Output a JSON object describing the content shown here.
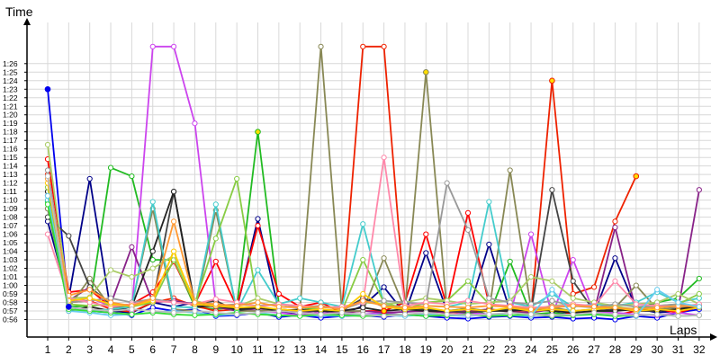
{
  "chart_data": {
    "type": "line",
    "title": "",
    "ylabel": "Time",
    "xlabel": "Laps",
    "x": [
      1,
      2,
      3,
      4,
      5,
      6,
      7,
      8,
      9,
      10,
      11,
      12,
      13,
      14,
      15,
      16,
      17,
      18,
      19,
      20,
      21,
      22,
      23,
      24,
      25,
      26,
      27,
      28,
      29,
      30,
      31,
      32
    ],
    "ylim": [
      55.5,
      88
    ],
    "yticks": [
      56,
      57,
      58,
      59,
      60,
      61,
      62,
      63,
      64,
      65,
      66,
      67,
      68,
      69,
      70,
      71,
      72,
      73,
      74,
      75,
      76,
      77,
      78,
      79,
      80,
      81,
      82,
      83,
      84,
      85,
      86
    ],
    "ytick_labels": [
      "0:56",
      "0:57",
      "0:58",
      "0:59",
      "1:00",
      "1:01",
      "1:02",
      "1:03",
      "1:04",
      "1:05",
      "1:06",
      "1:07",
      "1:08",
      "1:09",
      "1:10",
      "1:11",
      "1:12",
      "1:13",
      "1:14",
      "1:15",
      "1:16",
      "1:17",
      "1:18",
      "1:19",
      "1:20",
      "1:21",
      "1:22",
      "1:23",
      "1:24",
      "1:25",
      "1:26"
    ],
    "grid": true,
    "legend": "none",
    "series": [
      {
        "color": "#0000ee",
        "values": [
          83.0,
          57.5,
          57.0,
          56.8,
          56.5,
          57.4,
          57.0,
          57.2,
          56.4,
          56.5,
          56.8,
          56.3,
          56.5,
          56.2,
          56.4,
          56.5,
          56.3,
          56.6,
          56.4,
          56.2,
          56.1,
          56.3,
          56.4,
          56.2,
          56.3,
          56.1,
          56.2,
          56.0,
          56.4,
          56.2,
          56.8,
          57.2
        ]
      },
      {
        "color": "#000088",
        "values": [
          67.5,
          58.5,
          72.5,
          57.0,
          56.8,
          58.0,
          57.5,
          58.0,
          57.6,
          57.2,
          67.8,
          57.0,
          56.5,
          56.8,
          56.6,
          57.6,
          59.8,
          56.7,
          63.8,
          57.0,
          56.8,
          64.8,
          57.0,
          56.5,
          56.8,
          56.6,
          56.7,
          63.2,
          57.3,
          56.8,
          57.0,
          57.5
        ]
      },
      {
        "color": "#22bb22",
        "values": [
          69.8,
          57.5,
          57.6,
          73.8,
          72.8,
          63.0,
          63.0,
          57.5,
          57.2,
          57.5,
          78.0,
          57.8,
          57.5,
          57.0,
          56.8,
          56.5,
          56.6,
          56.5,
          56.8,
          57.0,
          57.3,
          56.5,
          62.8,
          56.6,
          56.8,
          56.5,
          56.8,
          57.0,
          57.3,
          58.0,
          58.5,
          60.8
        ]
      },
      {
        "color": "#ff0000",
        "values": [
          74.8,
          59.2,
          59.5,
          57.5,
          57.8,
          59.2,
          62.8,
          57.8,
          62.8,
          57.5,
          67.0,
          59.0,
          57.5,
          58.0,
          56.8,
          57.0,
          57.0,
          58.0,
          66.0,
          57.5,
          68.5,
          57.8,
          57.5,
          57.2,
          57.5,
          56.5,
          56.8,
          56.5,
          57.0,
          57.2,
          56.8,
          57.5
        ]
      },
      {
        "color": "#ee2200",
        "values": [
          73.0,
          58.0,
          58.2,
          57.2,
          56.9,
          58.0,
          58.5,
          57.6,
          57.0,
          57.2,
          57.4,
          57.2,
          56.9,
          57.0,
          57.0,
          88.0,
          88.0,
          57.6,
          57.0,
          56.8,
          56.9,
          57.2,
          57.0,
          56.8,
          84.0,
          59.0,
          59.8,
          67.5,
          72.8,
          null,
          null,
          null
        ]
      },
      {
        "color": "#cc44ee",
        "values": [
          69.0,
          58.0,
          58.5,
          57.6,
          57.0,
          88.0,
          88.0,
          79.0,
          57.8,
          57.2,
          57.0,
          56.8,
          56.5,
          56.8,
          56.5,
          56.6,
          56.8,
          56.5,
          56.6,
          56.5,
          56.8,
          56.6,
          56.5,
          66.0,
          56.5,
          63.0,
          56.8,
          56.8,
          56.6,
          56.5,
          56.8,
          56.5
        ]
      },
      {
        "color": "#882288",
        "values": [
          70.5,
          58.2,
          59.8,
          57.8,
          64.5,
          58.0,
          58.2,
          57.8,
          57.5,
          57.0,
          57.3,
          57.0,
          56.8,
          57.0,
          56.8,
          57.0,
          56.8,
          56.9,
          57.0,
          56.8,
          57.0,
          57.2,
          56.9,
          56.8,
          57.2,
          56.8,
          56.9,
          66.8,
          57.0,
          57.0,
          57.2,
          71.2
        ]
      },
      {
        "color": "#888855",
        "values": [
          69.0,
          57.4,
          60.8,
          57.4,
          57.6,
          69.0,
          57.2,
          57.0,
          68.8,
          57.0,
          57.0,
          57.2,
          57.0,
          88.0,
          57.0,
          57.0,
          63.2,
          57.2,
          85.0,
          57.0,
          57.3,
          57.0,
          73.5,
          57.2,
          57.4,
          57.0,
          57.2,
          57.4,
          60.0,
          57.2,
          57.4,
          57.6
        ]
      },
      {
        "color": "#444444",
        "values": [
          68.0,
          65.8,
          59.8,
          57.8,
          57.6,
          58.0,
          71.0,
          57.8,
          58.2,
          57.0,
          57.4,
          57.2,
          57.0,
          57.0,
          57.0,
          58.5,
          57.5,
          57.2,
          57.2,
          57.0,
          56.8,
          57.0,
          57.2,
          57.0,
          71.2,
          60.5,
          57.0,
          57.2,
          57.0,
          57.0,
          57.2,
          57.4
        ]
      },
      {
        "color": "#222222",
        "values": [
          71.0,
          57.0,
          57.5,
          57.0,
          57.5,
          64.0,
          71.0,
          57.5,
          57.6,
          57.2,
          57.4,
          57.0,
          57.2,
          57.0,
          57.0,
          57.4,
          57.0,
          57.2,
          57.0,
          57.0,
          57.2,
          57.0,
          57.0,
          57.2,
          57.0,
          56.8,
          57.0,
          57.0,
          57.2,
          57.0,
          57.2,
          57.6
        ]
      },
      {
        "color": "#44cccc",
        "values": [
          70.0,
          57.5,
          57.0,
          57.2,
          57.5,
          69.8,
          57.5,
          57.4,
          69.5,
          57.0,
          61.8,
          57.8,
          58.5,
          58.0,
          57.5,
          67.2,
          57.8,
          57.4,
          57.6,
          57.5,
          58.0,
          69.8,
          58.0,
          57.5,
          59.0,
          57.5,
          57.8,
          57.6,
          58.0,
          59.2,
          58.0,
          58.5
        ]
      },
      {
        "color": "#88cc44",
        "values": [
          71.5,
          57.8,
          57.6,
          57.8,
          57.5,
          58.0,
          63.0,
          57.8,
          65.5,
          72.5,
          57.6,
          57.8,
          57.5,
          57.2,
          57.0,
          63.0,
          58.0,
          57.2,
          58.0,
          58.2,
          60.5,
          57.8,
          57.5,
          57.2,
          57.6,
          57.8,
          57.4,
          57.5,
          57.2,
          57.6,
          57.8,
          59.0
        ]
      },
      {
        "color": "#aacc66",
        "values": [
          76.5,
          58.5,
          58.6,
          61.8,
          61.0,
          62.0,
          63.5,
          58.2,
          57.6,
          57.5,
          58.5,
          57.8,
          57.6,
          57.4,
          57.5,
          58.0,
          57.8,
          58.0,
          58.5,
          58.2,
          57.8,
          58.0,
          58.2,
          61.0,
          60.5,
          58.5,
          58.0,
          57.6,
          57.8,
          58.0,
          59.0,
          57.8
        ]
      },
      {
        "color": "#999999",
        "values": [
          73.5,
          58.0,
          58.2,
          58.5,
          58.0,
          58.4,
          58.0,
          57.8,
          57.6,
          57.8,
          57.6,
          57.8,
          57.5,
          57.6,
          57.2,
          58.0,
          58.2,
          58.0,
          57.8,
          72.0,
          66.5,
          58.5,
          58.0,
          57.8,
          58.2,
          57.6,
          57.4,
          57.8,
          57.5,
          57.6,
          57.8,
          57.6
        ]
      },
      {
        "color": "#ff88aa",
        "values": [
          66.0,
          58.5,
          58.0,
          57.5,
          57.8,
          58.2,
          58.0,
          57.8,
          58.4,
          58.0,
          57.5,
          57.8,
          57.6,
          57.4,
          57.5,
          58.0,
          75.0,
          57.6,
          58.0,
          57.8,
          58.2,
          57.8,
          57.6,
          57.4,
          57.5,
          57.8,
          57.6,
          60.5,
          57.8,
          57.6,
          57.5,
          57.8
        ]
      },
      {
        "color": "#ffcc00",
        "values": [
          72.0,
          58.2,
          58.5,
          57.8,
          57.6,
          58.2,
          64.0,
          57.8,
          57.6,
          57.4,
          57.5,
          57.2,
          57.0,
          57.2,
          57.0,
          59.0,
          57.5,
          57.2,
          57.4,
          57.0,
          57.2,
          57.0,
          57.4,
          57.0,
          57.2,
          57.0,
          57.2,
          57.4,
          57.0,
          57.2,
          57.0,
          57.4
        ]
      },
      {
        "color": "#ff9933",
        "values": [
          72.5,
          58.8,
          59.5,
          58.0,
          57.6,
          58.5,
          67.5,
          58.0,
          57.8,
          57.6,
          58.0,
          57.5,
          57.4,
          57.5,
          57.2,
          58.2,
          57.6,
          57.4,
          57.6,
          57.5,
          57.4,
          57.6,
          57.5,
          57.2,
          57.4,
          57.6,
          57.5,
          57.4,
          57.2,
          57.4,
          57.6,
          57.5
        ]
      },
      {
        "color": "#66ccee",
        "values": [
          70.5,
          57.0,
          56.8,
          56.5,
          56.6,
          56.8,
          57.0,
          56.8,
          56.5,
          56.6,
          56.8,
          56.5,
          56.4,
          56.5,
          56.4,
          56.6,
          56.5,
          56.4,
          56.6,
          56.5,
          56.4,
          56.6,
          56.5,
          56.4,
          59.5,
          56.5,
          56.6,
          56.5,
          56.4,
          59.5,
          58.0,
          57.5
        ]
      },
      {
        "color": "#33dd33",
        "values": [
          69.5,
          57.2,
          57.0,
          56.8,
          56.6,
          56.8,
          56.6,
          56.5,
          56.6,
          56.8,
          56.6,
          56.5,
          56.4,
          56.6,
          56.5,
          56.4,
          56.5,
          56.6,
          56.4,
          56.5,
          56.6,
          56.4,
          56.5,
          56.6,
          56.4,
          56.5,
          56.6,
          56.4,
          56.5,
          56.6,
          56.4,
          56.5
        ]
      },
      {
        "color": "#bbbbbb",
        "values": [
          72.8,
          57.4,
          57.2,
          57.0,
          57.2,
          57.0,
          56.8,
          57.0,
          56.8,
          56.6,
          56.8,
          57.0,
          56.8,
          56.6,
          56.8,
          56.6,
          56.4,
          56.6,
          56.8,
          56.6,
          56.5,
          56.6,
          56.8,
          56.6,
          56.5,
          56.6,
          56.8,
          56.6,
          56.5,
          56.6,
          56.4,
          56.5
        ]
      }
    ]
  }
}
